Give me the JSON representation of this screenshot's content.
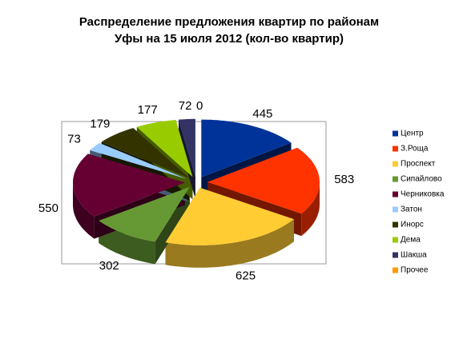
{
  "chart_data": {
    "type": "pie3d",
    "title": [
      "Распределение предложения  квартир по районам",
      "Уфы на 15 июля 2012 (кол-во квартир)"
    ],
    "categories": [
      "Центр",
      "З.Роща",
      "Проспект",
      "Сипайлово",
      "Черниковка",
      "Затон",
      "Инорс",
      "Дема",
      "Шакша",
      "Прочее"
    ],
    "values": [
      445,
      583,
      625,
      302,
      550,
      73,
      179,
      177,
      72,
      0
    ],
    "colors": [
      "#003399",
      "#ff3300",
      "#ffcc33",
      "#669933",
      "#660033",
      "#99ccff",
      "#333300",
      "#99cc00",
      "#333366",
      "#ff9900"
    ],
    "legend": "right"
  }
}
